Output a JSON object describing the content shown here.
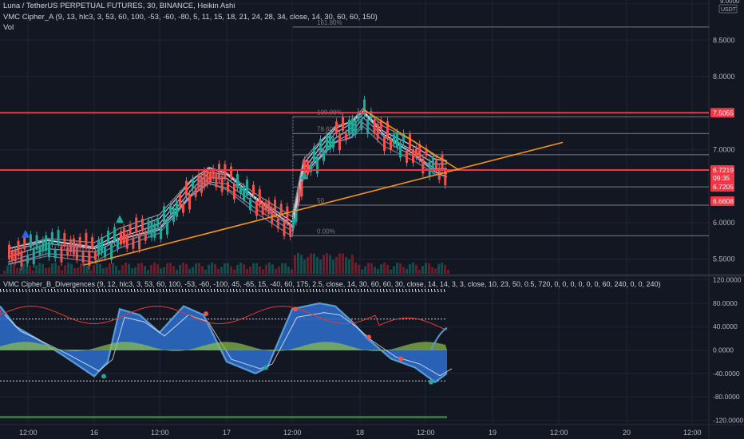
{
  "header": {
    "main_title": "Luna / TetherUS PERPETUAL FUTURES, 30, BINANCE, Heikin Ashi",
    "indicator_a": "VMC Cipher_A (9, 13, hlc3, 3, 53, 60, 100, -53, -60, -80, 5, 11, 15, 18, 21, 24, 28, 34, close, 14, 30, 60, 60, 150)",
    "vol_label": "Vol",
    "indicator_b": "VMC Cipher_B_Divergences (9, 12, hlc3, 3, 53, 60, 100, -53, -60, -100, 45, -65, 15, -40, 60, 175, 2.5, close, 14, 30, 60, 60, 30, close, 14, 14, 3, 3, close, 10, 23, 50, 0.5, 720, 0, 0, 0, 0, 0, 0, 60, 240, 0, 0, 240)"
  },
  "price_axis": {
    "currency": "USDT",
    "ticks": [
      "9.0000",
      "8.5000",
      "8.0000",
      "7.0000",
      "6.0000",
      "5.5000"
    ],
    "top_partial": "9.0000"
  },
  "price_badges": [
    {
      "label": "7.5055",
      "color": "#f23645"
    },
    {
      "label": "6.7219",
      "color": "#f23645"
    },
    {
      "label": "09:35",
      "color": "#f23645"
    },
    {
      "label": "6.7205",
      "color": "#f23645"
    },
    {
      "label": "6.6608",
      "color": "#f23645"
    }
  ],
  "fib_levels": [
    {
      "label": "161.80%",
      "price": 8.68
    },
    {
      "label": "100.00%",
      "price": 7.45
    },
    {
      "label": "78.60%",
      "price": 7.22
    },
    {
      "label": "61",
      "price": 6.93
    },
    {
      "label": "",
      "price": 6.72
    },
    {
      "label": "",
      "price": 6.49
    },
    {
      "label": "50",
      "price": 6.24
    },
    {
      "label": "0.00%",
      "price": 5.82
    }
  ],
  "osc_axis": {
    "ticks": [
      "120.0000",
      "80.0000",
      "40.0000",
      "0.0000",
      "-40.0000",
      "-80.0000",
      "-120.0000"
    ]
  },
  "time_axis": {
    "labels": [
      "12:00",
      "16",
      "12:00",
      "17",
      "12:00",
      "18",
      "12:00",
      "19",
      "12:00",
      "20",
      "12:00"
    ]
  },
  "chart_data": [
    {
      "type": "line",
      "title": "Luna / TetherUS PERPETUAL FUTURES, 30, BINANCE, Heikin Ashi",
      "ylim": [
        5.3,
        9.0
      ],
      "x": [
        "15 12:00",
        "16",
        "16 12:00",
        "17",
        "17 12:00",
        "18",
        "18 12:00",
        "19",
        "19 12:00",
        "20",
        "20 12:00"
      ],
      "series": [
        {
          "name": "price",
          "values": [
            5.55,
            5.75,
            5.8,
            6.35,
            6.65,
            7.45,
            6.75,
            null,
            null,
            null,
            null
          ]
        }
      ],
      "horizontal_lines": [
        7.5055,
        6.7219
      ],
      "grid": true
    },
    {
      "type": "area",
      "title": "VMC Cipher_B_Divergences",
      "ylim": [
        -120,
        120
      ],
      "x": [
        "15 12:00",
        "16",
        "16 12:00",
        "17",
        "17 12:00",
        "18",
        "18 12:00",
        "19",
        "19 12:00",
        "20",
        "20 12:00"
      ],
      "series": [
        {
          "name": "wave",
          "values": [
            60,
            -45,
            75,
            55,
            -40,
            75,
            20,
            null,
            null,
            null,
            null
          ]
        }
      ],
      "grid": true
    }
  ],
  "colors": {
    "bg": "#131722",
    "grid": "#1f2535",
    "red_line": "#f23645",
    "trend": "#f7931a",
    "fib": "#787b86",
    "wave": "#5b9bd5",
    "wave_fill": "#2e6fcf",
    "green": "#26a69a"
  }
}
